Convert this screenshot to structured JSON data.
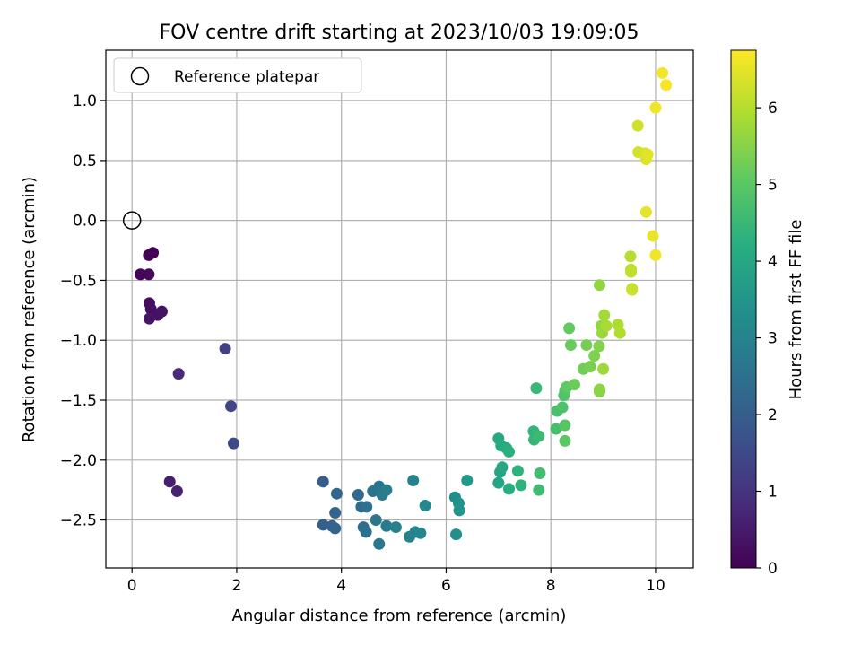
{
  "chart_data": {
    "type": "scatter",
    "title": "FOV centre drift starting at 2023/10/03 19:09:05",
    "xlabel": "Angular distance from reference (arcmin)",
    "ylabel": "Rotation from reference (arcmin)",
    "xlim": [
      -0.5,
      10.72
    ],
    "ylim": [
      -2.9,
      1.42
    ],
    "xticks": [
      0,
      2,
      4,
      6,
      8,
      10
    ],
    "xtick_labels": [
      "0",
      "2",
      "4",
      "6",
      "8",
      "10"
    ],
    "yticks": [
      1.0,
      0.5,
      0.0,
      -0.5,
      -1.0,
      -1.5,
      -2.0,
      -2.5
    ],
    "ytick_labels": [
      "1.0",
      "0.5",
      "0.0",
      "−0.5",
      "−1.0",
      "−1.5",
      "−2.0",
      "−2.5"
    ],
    "grid": true,
    "legend": {
      "position": "top-left",
      "entries": [
        "Reference platepar"
      ]
    },
    "reference_point": {
      "x": 0,
      "y": 0
    },
    "colorbar": {
      "label": "Hours from first FF file",
      "range": [
        0,
        6.75
      ],
      "ticks": [
        0,
        1,
        2,
        3,
        4,
        5,
        6
      ],
      "tick_labels": [
        "0",
        "1",
        "2",
        "3",
        "4",
        "5",
        "6"
      ],
      "colormap": "viridis"
    },
    "points": [
      [
        0.4,
        -0.27,
        0.0
      ],
      [
        0.32,
        -0.29,
        0.05
      ],
      [
        0.16,
        -0.45,
        0.1
      ],
      [
        0.32,
        -0.45,
        0.15
      ],
      [
        0.33,
        -0.69,
        0.2
      ],
      [
        0.36,
        -0.74,
        0.25
      ],
      [
        0.49,
        -0.79,
        0.3
      ],
      [
        0.57,
        -0.76,
        0.35
      ],
      [
        0.33,
        -0.82,
        0.4
      ],
      [
        0.72,
        -2.18,
        0.55
      ],
      [
        0.86,
        -2.26,
        0.65
      ],
      [
        0.89,
        -1.28,
        0.8
      ],
      [
        1.78,
        -1.07,
        1.3
      ],
      [
        1.89,
        -1.55,
        1.4
      ],
      [
        1.94,
        -1.86,
        1.5
      ],
      [
        3.65,
        -2.18,
        2.0
      ],
      [
        3.65,
        -2.54,
        2.05
      ],
      [
        3.82,
        -2.55,
        2.1
      ],
      [
        3.88,
        -2.44,
        2.15
      ],
      [
        3.88,
        -2.57,
        2.2
      ],
      [
        3.91,
        -2.28,
        2.25
      ],
      [
        4.32,
        -2.29,
        2.3
      ],
      [
        4.38,
        -2.39,
        2.35
      ],
      [
        4.42,
        -2.56,
        2.4
      ],
      [
        4.47,
        -2.6,
        2.45
      ],
      [
        4.48,
        -2.39,
        2.5
      ],
      [
        4.6,
        -2.26,
        2.55
      ],
      [
        4.66,
        -2.5,
        2.6
      ],
      [
        4.72,
        -2.22,
        2.65
      ],
      [
        4.72,
        -2.7,
        2.7
      ],
      [
        4.78,
        -2.29,
        2.75
      ],
      [
        4.86,
        -2.55,
        2.8
      ],
      [
        4.86,
        -2.25,
        2.85
      ],
      [
        5.04,
        -2.56,
        2.9
      ],
      [
        5.3,
        -2.64,
        2.95
      ],
      [
        5.37,
        -2.17,
        3.0
      ],
      [
        5.41,
        -2.6,
        3.05
      ],
      [
        5.51,
        -2.61,
        3.1
      ],
      [
        5.6,
        -2.38,
        3.15
      ],
      [
        6.17,
        -2.31,
        3.3
      ],
      [
        6.19,
        -2.62,
        3.35
      ],
      [
        6.24,
        -2.36,
        3.4
      ],
      [
        6.25,
        -2.42,
        3.45
      ],
      [
        6.4,
        -2.17,
        3.55
      ],
      [
        7.0,
        -2.19,
        3.9
      ],
      [
        7.03,
        -2.1,
        3.95
      ],
      [
        7.07,
        -2.06,
        4.0
      ],
      [
        7.0,
        -1.82,
        4.05
      ],
      [
        7.05,
        -1.88,
        4.1
      ],
      [
        7.15,
        -1.9,
        4.15
      ],
      [
        7.2,
        -2.24,
        4.2
      ],
      [
        7.2,
        -1.93,
        4.25
      ],
      [
        7.37,
        -2.09,
        4.3
      ],
      [
        7.43,
        -2.21,
        4.35
      ],
      [
        7.67,
        -1.76,
        4.4
      ],
      [
        7.68,
        -1.83,
        4.45
      ],
      [
        7.72,
        -1.4,
        4.5
      ],
      [
        7.77,
        -1.8,
        4.55
      ],
      [
        7.77,
        -2.25,
        4.6
      ],
      [
        7.79,
        -2.11,
        4.65
      ],
      [
        8.1,
        -1.74,
        4.7
      ],
      [
        8.12,
        -1.59,
        4.75
      ],
      [
        8.22,
        -1.56,
        4.8
      ],
      [
        8.25,
        -1.46,
        4.85
      ],
      [
        8.27,
        -1.42,
        4.9
      ],
      [
        8.27,
        -1.71,
        4.95
      ],
      [
        8.27,
        -1.84,
        5.0
      ],
      [
        8.3,
        -1.39,
        5.05
      ],
      [
        8.35,
        -0.9,
        5.1
      ],
      [
        8.38,
        -1.04,
        5.15
      ],
      [
        8.45,
        -1.37,
        5.2
      ],
      [
        8.62,
        -1.24,
        5.25
      ],
      [
        8.68,
        -1.04,
        5.3
      ],
      [
        8.75,
        -1.22,
        5.35
      ],
      [
        8.83,
        -1.13,
        5.4
      ],
      [
        8.92,
        -1.05,
        5.45
      ],
      [
        8.93,
        -1.43,
        5.5
      ],
      [
        8.93,
        -1.41,
        5.55
      ],
      [
        8.93,
        -0.54,
        5.6
      ],
      [
        8.96,
        -0.88,
        5.65
      ],
      [
        8.98,
        -0.94,
        5.7
      ],
      [
        9.0,
        -1.24,
        5.75
      ],
      [
        9.02,
        -0.79,
        5.8
      ],
      [
        9.06,
        -0.88,
        5.85
      ],
      [
        9.28,
        -0.87,
        5.9
      ],
      [
        9.32,
        -0.94,
        5.95
      ],
      [
        9.52,
        -0.3,
        6.0
      ],
      [
        9.53,
        -0.41,
        6.05
      ],
      [
        9.53,
        -0.43,
        6.1
      ],
      [
        9.55,
        -0.57,
        6.15
      ],
      [
        9.55,
        -0.58,
        6.2
      ],
      [
        9.66,
        0.79,
        6.25
      ],
      [
        9.67,
        0.57,
        6.3
      ],
      [
        9.8,
        0.56,
        6.35
      ],
      [
        9.82,
        0.51,
        6.4
      ],
      [
        9.85,
        0.55,
        6.45
      ],
      [
        9.82,
        0.07,
        6.5
      ],
      [
        9.95,
        -0.13,
        6.55
      ],
      [
        10.0,
        0.94,
        6.6
      ],
      [
        10.0,
        -0.29,
        6.62
      ],
      [
        10.13,
        1.23,
        6.65
      ],
      [
        10.2,
        1.13,
        6.7
      ]
    ]
  }
}
